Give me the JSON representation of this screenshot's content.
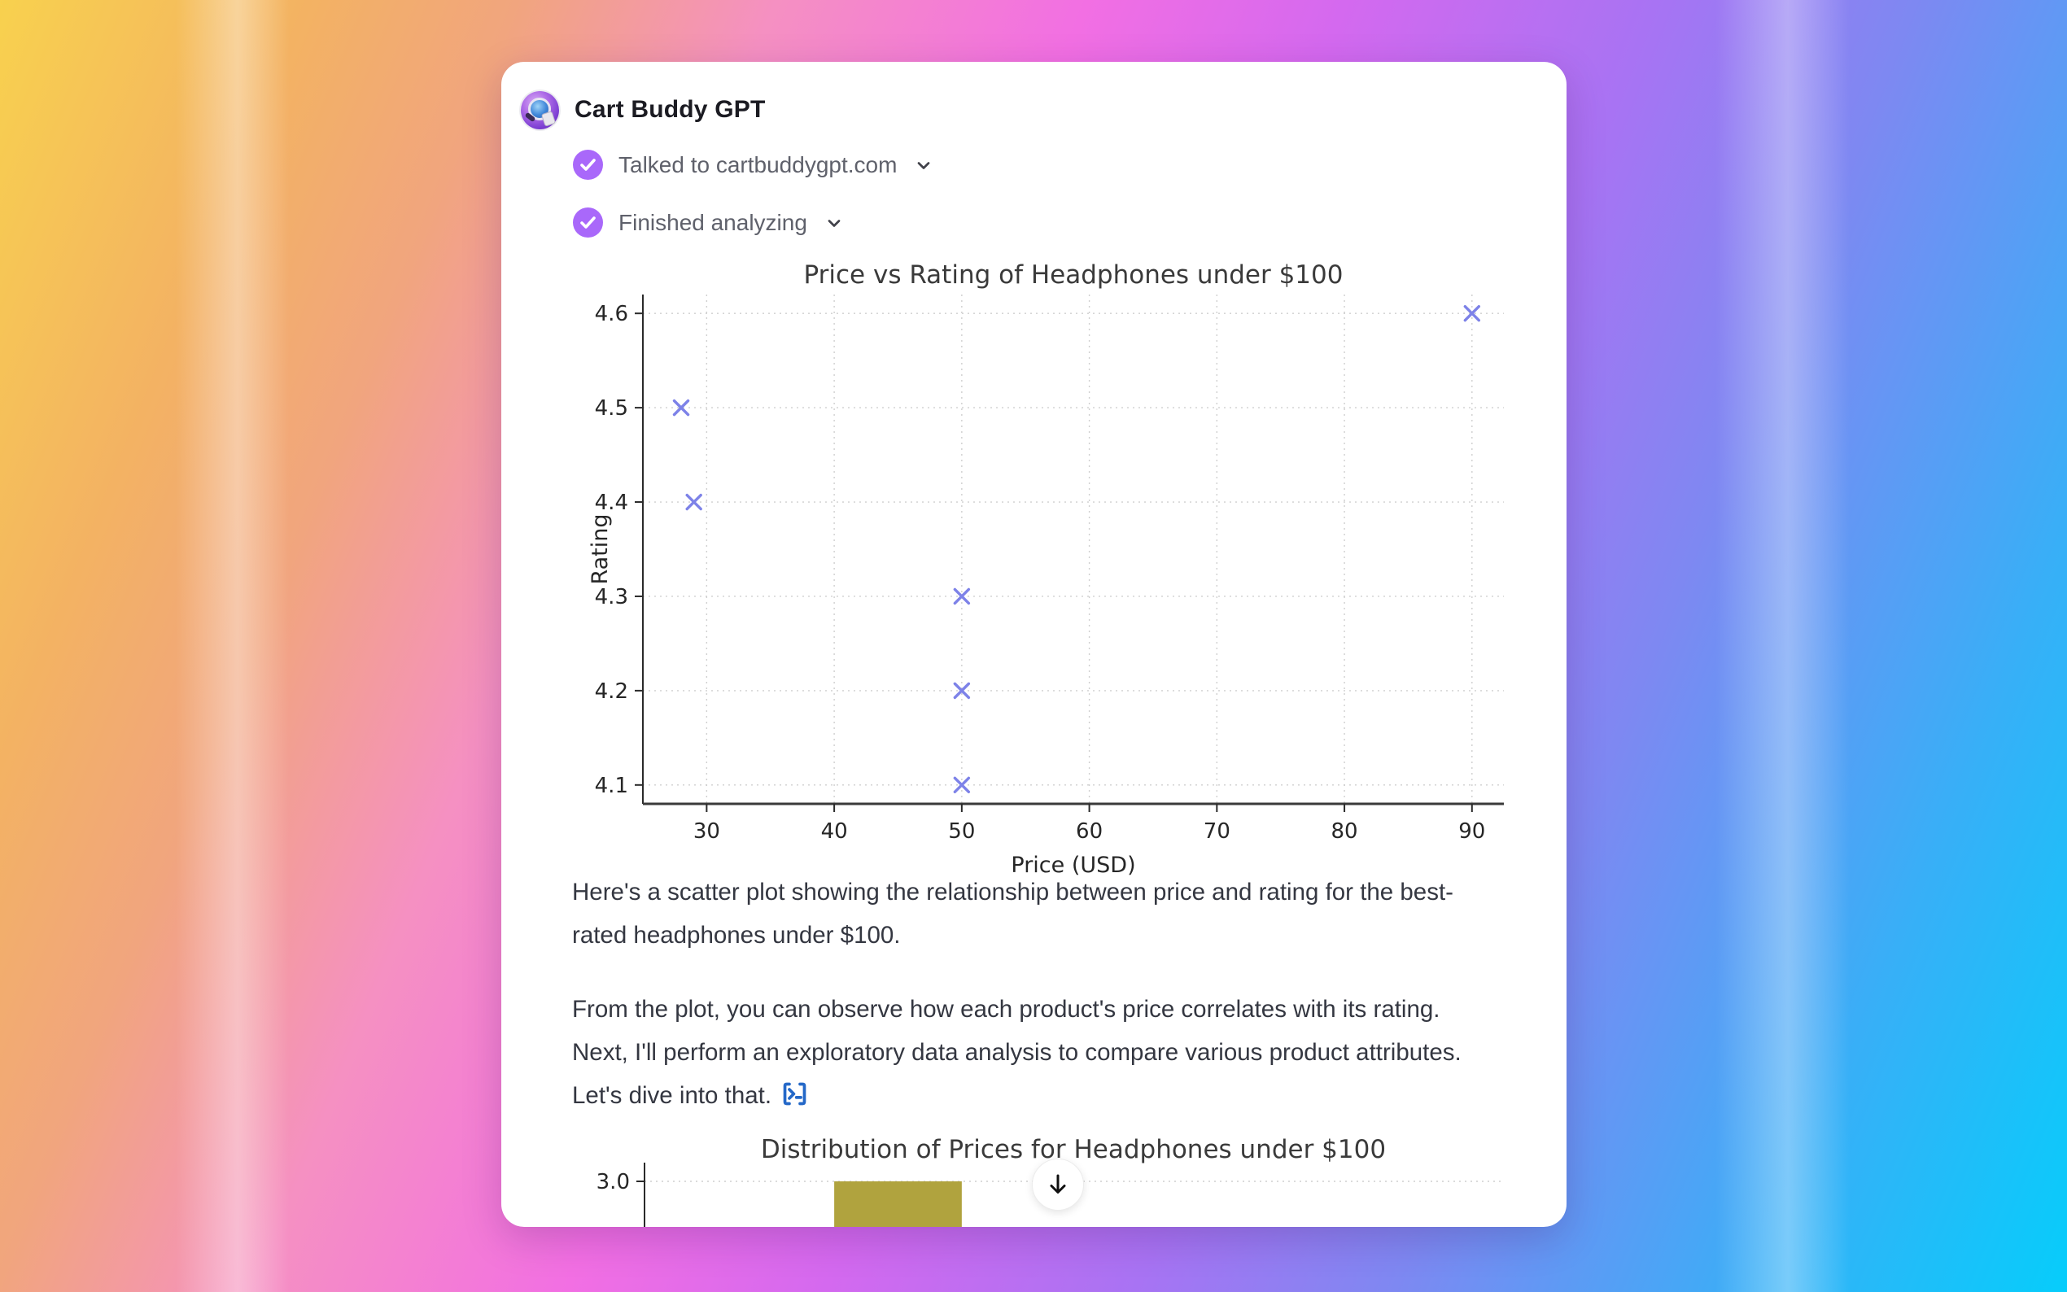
{
  "card": {
    "title": "Cart Buddy GPT",
    "status": [
      {
        "label": "Talked to cartbuddygpt.com"
      },
      {
        "label": "Finished analyzing"
      }
    ],
    "paragraphs": {
      "p1": "Here's a scatter plot showing the relationship between price and rating for the best-rated headphones under $100.",
      "p2": "From the plot, you can observe how each product's price correlates with its rating. Next, I'll perform an exploratory data analysis to compare various product attributes. Let's dive into that."
    }
  },
  "icons": {
    "avatar": "cart-buddy-logo",
    "status_check": "check-circle",
    "expand": "chevron-down",
    "code_link": "terminal-brackets",
    "scroll": "arrow-down"
  },
  "colors": {
    "accent_purple": "#a968fa",
    "marker_purple": "#7d82e8",
    "bar_olive": "#b0a33e",
    "link_blue": "#2468c8",
    "grid_gray": "#cfcfcf",
    "text_dark": "#343741"
  },
  "chart_data": [
    {
      "type": "scatter",
      "title": "Price vs Rating of Headphones under $100",
      "xlabel": "Price (USD)",
      "ylabel": "Rating",
      "x": [
        28,
        29,
        50,
        50,
        50,
        90
      ],
      "y": [
        4.5,
        4.4,
        4.3,
        4.2,
        4.1,
        4.6
      ],
      "xticks": [
        30,
        40,
        50,
        60,
        70,
        80,
        90
      ],
      "yticks": [
        4.1,
        4.2,
        4.3,
        4.4,
        4.5,
        4.6
      ],
      "xlim": [
        25,
        92.5
      ],
      "ylim": [
        4.08,
        4.62
      ],
      "grid": true,
      "legend": "none",
      "marker": "x",
      "marker_color": "#7d82e8"
    },
    {
      "type": "bar",
      "title": "Distribution of Prices for Headphones under $100",
      "partially_visible": true,
      "visible_ytick": 3.0,
      "visible_bar": {
        "x_range": [
          40,
          50
        ],
        "height_reaches_at_least": 3.0
      },
      "bar_color": "#b0a33e",
      "xlim": [
        25,
        92.5
      ],
      "grid": true
    }
  ]
}
